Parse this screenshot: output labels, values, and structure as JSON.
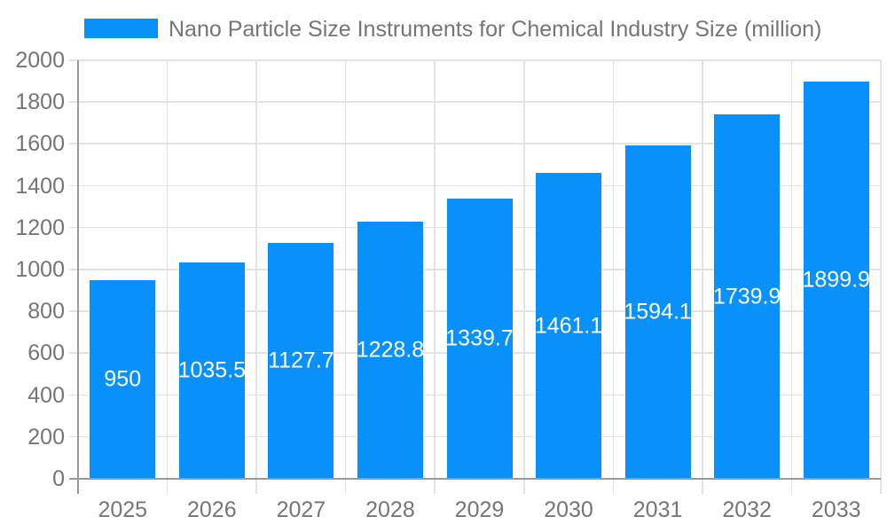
{
  "chart_data": {
    "type": "bar",
    "title": "Nano Particle Size Instruments for Chemical Industry Size (million)",
    "categories": [
      "2025",
      "2026",
      "2027",
      "2028",
      "2029",
      "2030",
      "2031",
      "2032",
      "2033"
    ],
    "values": [
      950,
      1035.5,
      1127.7,
      1228.8,
      1339.7,
      1461.1,
      1594.1,
      1739.9,
      1899.9
    ],
    "series_name": "Nano Particle Size Instruments for Chemical Industry Size (million)",
    "xlabel": "",
    "ylabel": "",
    "ylim": [
      0,
      2000
    ],
    "ytick_step": 200,
    "yticks": [
      0,
      200,
      400,
      600,
      800,
      1000,
      1200,
      1400,
      1600,
      1800,
      2000
    ],
    "grid": true,
    "legend_position": "top-left",
    "value_labels_inside_bars": true,
    "colors": {
      "bar": "#0991fb",
      "axis_line": "#9a9a9a",
      "grid_line": "#e3e3e3",
      "tick_label": "#757575",
      "legend_label": "#757575",
      "bar_label": "#ffffff",
      "background": "#ffffff"
    }
  }
}
